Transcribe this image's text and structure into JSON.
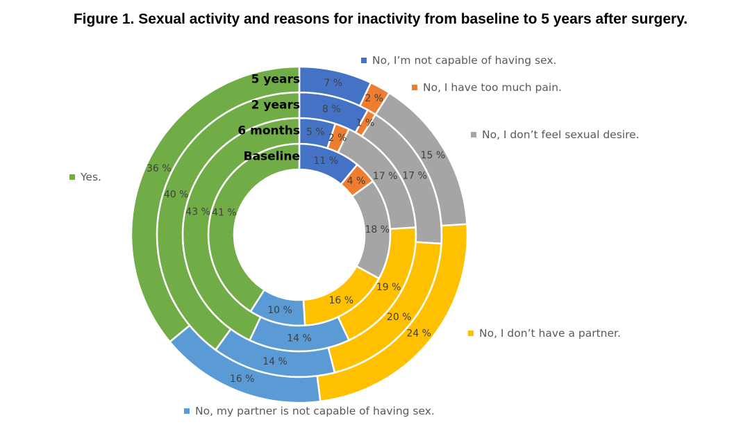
{
  "chart_data": {
    "type": "doughnut",
    "title": "Figure 1. Sexual activity and reasons for inactivity from baseline to 5 years after surgery.",
    "categories": [
      "No, I’m not capable of having sex.",
      "No, I have too much pain.",
      "No, I don’t feel sexual desire.",
      "No, I don’t have a partner.",
      "No, my partner is not capable of having sex.",
      "Yes."
    ],
    "colors": [
      "#4472C4",
      "#ED7D31",
      "#A5A5A5",
      "#FFC000",
      "#5B9BD5",
      "#70AD47"
    ],
    "series": [
      {
        "name": "Baseline",
        "values": [
          11,
          4,
          18,
          16,
          10,
          41
        ]
      },
      {
        "name": "6 months",
        "values": [
          5,
          2,
          17,
          19,
          14,
          43
        ]
      },
      {
        "name": "2 years",
        "values": [
          8,
          1,
          17,
          20,
          14,
          40
        ]
      },
      {
        "name": "5 years",
        "values": [
          7,
          2,
          15,
          24,
          16,
          36
        ]
      }
    ],
    "value_suffix": " %",
    "legend": [
      {
        "label": "No, I’m not capable of having sex.",
        "color": "#4472C4"
      },
      {
        "label": "No, I have too much pain.",
        "color": "#ED7D31"
      },
      {
        "label": "No, I don’t feel sexual desire.",
        "color": "#A5A5A5"
      },
      {
        "label": "No, I don’t have a partner.",
        "color": "#FFC000"
      },
      {
        "label": "No, my partner is not capable of having sex.",
        "color": "#5B9BD5"
      },
      {
        "label": "Yes.",
        "color": "#70AD47"
      }
    ]
  }
}
